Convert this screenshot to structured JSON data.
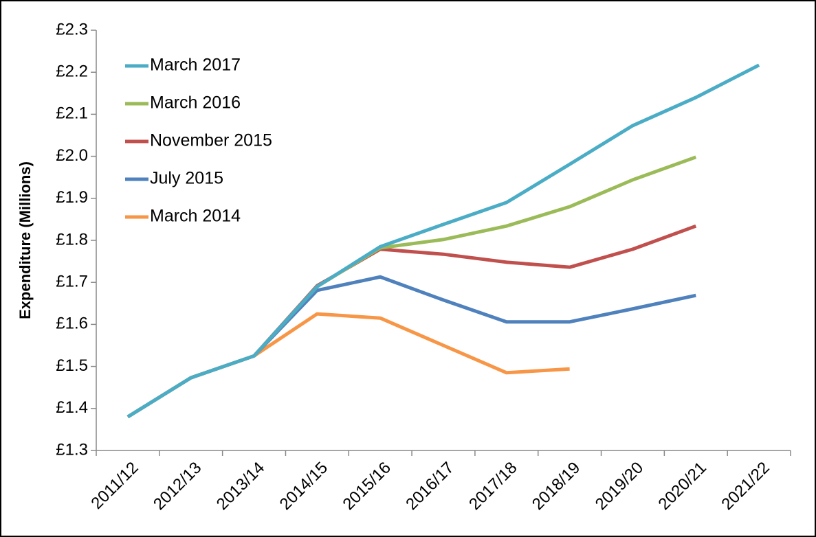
{
  "chart_data": {
    "type": "line",
    "y_label": "Expenditure (Millions)",
    "categories": [
      "2011/12",
      "2012/13",
      "2013/14",
      "2014/15",
      "2015/16",
      "2016/17",
      "2017/18",
      "2018/19",
      "2019/20",
      "2020/21",
      "2021/22"
    ],
    "series": [
      {
        "name": "March 2017",
        "color": "#4bacc6",
        "values": [
          1.38,
          1.473,
          1.525,
          1.69,
          1.785,
          1.838,
          1.89,
          1.981,
          2.073,
          2.14,
          2.217
        ]
      },
      {
        "name": "March 2016",
        "color": "#9bbb59",
        "values": [
          1.38,
          1.473,
          1.525,
          1.69,
          1.782,
          1.802,
          1.834,
          1.88,
          1.944,
          1.998,
          null
        ]
      },
      {
        "name": "November 2015",
        "color": "#c0504d",
        "values": [
          1.38,
          1.473,
          1.525,
          1.692,
          1.779,
          1.767,
          1.748,
          1.736,
          1.779,
          1.834,
          null
        ]
      },
      {
        "name": "July 2015",
        "color": "#4f81bd",
        "values": [
          1.38,
          1.473,
          1.525,
          1.681,
          1.713,
          1.658,
          1.606,
          1.606,
          1.637,
          1.669,
          null
        ]
      },
      {
        "name": "March 2014",
        "color": "#f79646",
        "values": [
          1.38,
          1.473,
          1.525,
          1.625,
          1.615,
          1.55,
          1.485,
          1.494,
          null,
          null,
          null
        ]
      }
    ],
    "ylim": [
      1.3,
      2.3
    ],
    "yticks": [
      {
        "value": 1.3,
        "label": "£1.3"
      },
      {
        "value": 1.4,
        "label": "£1.4"
      },
      {
        "value": 1.5,
        "label": "£1.5"
      },
      {
        "value": 1.6,
        "label": "£1.6"
      },
      {
        "value": 1.7,
        "label": "£1.7"
      },
      {
        "value": 1.8,
        "label": "£1.8"
      },
      {
        "value": 1.9,
        "label": "£1.9"
      },
      {
        "value": 2.0,
        "label": "£2.0"
      },
      {
        "value": 2.1,
        "label": "£2.1"
      },
      {
        "value": 2.2,
        "label": "£2.2"
      },
      {
        "value": 2.3,
        "label": "£2.3"
      }
    ],
    "grid": false,
    "legend": "upper left"
  }
}
